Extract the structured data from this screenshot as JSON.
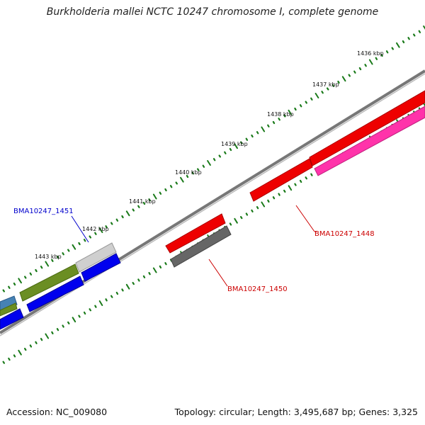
{
  "title": "Burkholderia mallei NCTC 10247 chromosome I, complete genome",
  "footer": {
    "accession": "Accession: NC_009080",
    "summary": "Topology: circular; Length: 3,495,687 bp; Genes: 3,325"
  },
  "scale": {
    "labels": [
      "1436 kbp",
      "1437 kbp",
      "1438 kbp",
      "1439 kbp",
      "1440 kbp",
      "1441 kbp",
      "1442 kbp",
      "1443 kbp"
    ]
  },
  "genes": {
    "gene_1448": {
      "label": "BMA10247_1448",
      "color": "#cc0000"
    },
    "gene_1450": {
      "label": "BMA10247_1450",
      "color": "#cc0000"
    },
    "gene_1451": {
      "label": "BMA10247_1451",
      "color": "#0000cc"
    }
  },
  "colors": {
    "backbone": "#888888",
    "ticks": "#1a7a1a",
    "red_cds": "#ee0000",
    "magenta_cds": "#ff33aa",
    "blue_cds": "#0000ee",
    "olive_cds": "#6b8e23",
    "gray_cds": "#666666",
    "lightgray_cds": "#cfcfcf",
    "steelblue_cds": "#4682b4"
  }
}
